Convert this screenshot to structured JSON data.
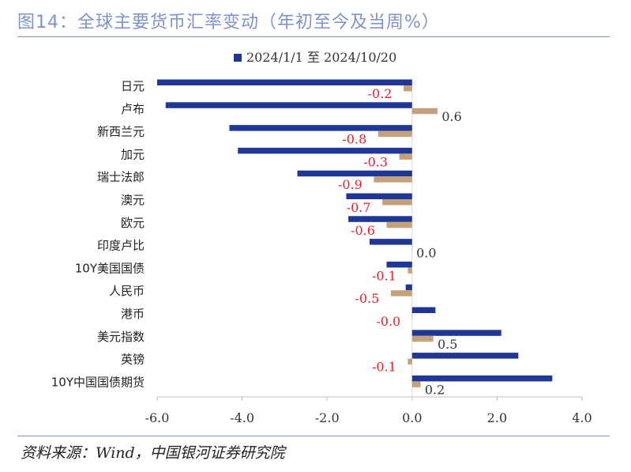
{
  "header": {
    "title": "图14：全球主要货币汇率变动（年初至今及当周%）"
  },
  "footer": {
    "source": "资料来源：Wind，中国银河证券研究院"
  },
  "colors": {
    "title": "#7e93c9",
    "series_ytd": "#1f3796",
    "series_week": "#c4a17b",
    "week_negative_label": "#e8202a",
    "week_positive_label": "#333333"
  },
  "chart_data": {
    "type": "bar",
    "orientation": "horizontal",
    "categories": [
      "日元",
      "卢布",
      "新西兰元",
      "加元",
      "瑞士法郎",
      "澳元",
      "欧元",
      "印度卢比",
      "10Y美国国债",
      "人民币",
      "港币",
      "美元指数",
      "英镑",
      "10Y中国国债期货"
    ],
    "series": [
      {
        "name": "2024/1/1 至 2024/10/20",
        "values": [
          -6.0,
          -5.8,
          -4.3,
          -4.1,
          -2.7,
          -1.55,
          -1.5,
          -1.0,
          -0.6,
          -0.15,
          0.55,
          2.1,
          2.5,
          3.3
        ]
      },
      {
        "values": [
          -0.2,
          0.6,
          -0.8,
          -0.3,
          -0.9,
          -0.7,
          -0.6,
          0.0,
          -0.1,
          -0.5,
          -0.0,
          0.5,
          -0.1,
          0.2
        ]
      }
    ],
    "data_labels": [
      "-0.2",
      "0.6",
      "-0.8",
      "-0.3",
      "-0.9",
      "-0.7",
      "-0.6",
      "0.0",
      "-0.1",
      "-0.5",
      "-0.0",
      "0.5",
      "-0.1",
      "0.2"
    ],
    "xlim": [
      -6.0,
      4.0
    ],
    "xticks": [
      -6.0,
      -4.0,
      -2.0,
      0.0,
      2.0,
      4.0
    ],
    "xtick_labels": [
      "-6.0",
      "-4.0",
      "-2.0",
      "0.0",
      "2.0",
      "4.0"
    ],
    "legend": {
      "position": "top",
      "entries": [
        "2024/1/1 至 2024/10/20"
      ]
    },
    "grid": false,
    "title": "",
    "xlabel": "",
    "ylabel": ""
  }
}
